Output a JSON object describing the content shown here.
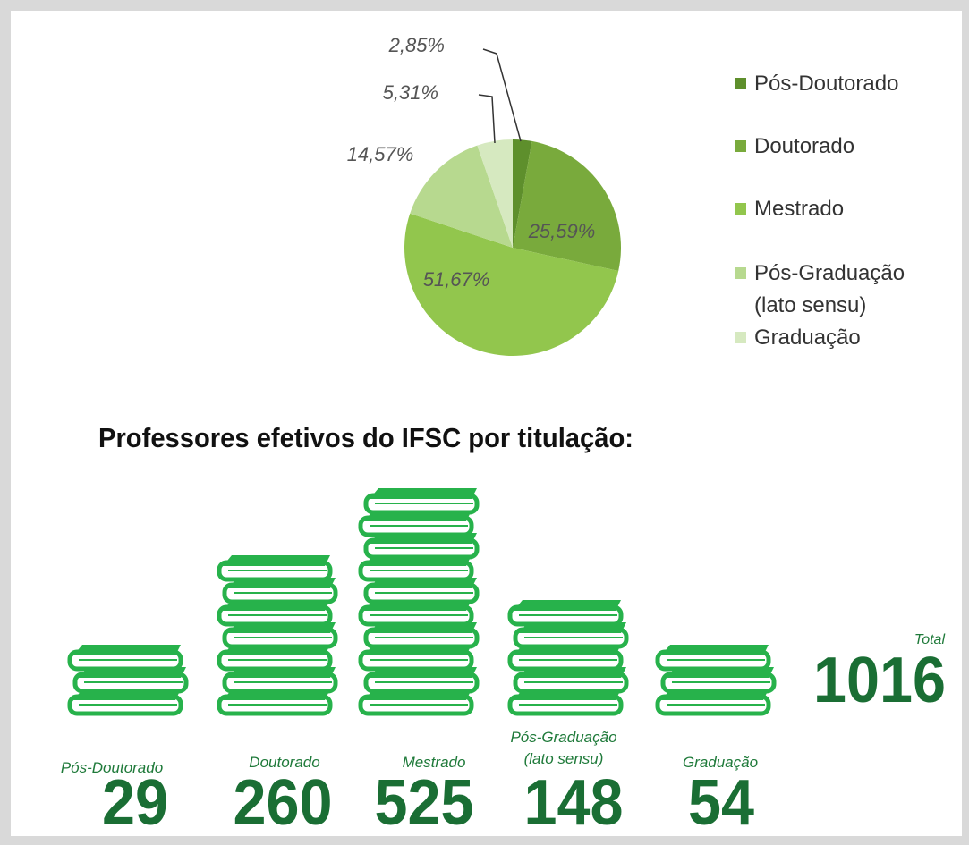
{
  "chart_data": [
    {
      "type": "pie",
      "categories": [
        "Pós-Doutorado",
        "Doutorado",
        "Mestrado",
        "Pós-Graduação (lato sensu)",
        "Graduação"
      ],
      "values": [
        2.85,
        25.59,
        51.67,
        14.57,
        5.31
      ],
      "value_labels": [
        "2,85%",
        "25,59%",
        "51,67%",
        "14,57%",
        "5,31%"
      ],
      "colors": [
        "#5e8f2c",
        "#79aa3c",
        "#92c64d",
        "#b7d98f",
        "#d6e9c0"
      ],
      "legend": "right"
    },
    {
      "type": "pictogram",
      "title": "Professores efetivos do IFSC por titulação:",
      "categories": [
        "Pós-Doutorado",
        "Doutorado",
        "Mestrado",
        "Pós-Graduação (lato sensu)",
        "Graduação"
      ],
      "values": [
        29,
        260,
        525,
        148,
        54
      ],
      "total_label": "Total",
      "total": 1016,
      "color": "#27b24b"
    }
  ]
}
